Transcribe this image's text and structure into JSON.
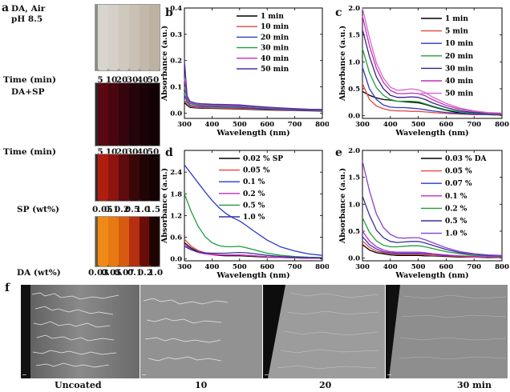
{
  "panels": {
    "a": {
      "label": "a",
      "caption1": "DA, Air",
      "caption2": "pH 8.5",
      "rows": [
        {
          "header": "Time (min)",
          "values": [
            "5",
            "10",
            "20",
            "30",
            "40",
            "50"
          ],
          "colors": [
            "#d9d5ce",
            "#d4cfc7",
            "#cfc8bd",
            "#c9c1b4",
            "#c3b9aa",
            "#bdb2a1"
          ]
        },
        {
          "header": "DA+SP",
          "header_pos": "above",
          "colors": [
            "#5a0812",
            "#4a0610",
            "#36040c",
            "#25030a",
            "#1a0207",
            "#120105"
          ]
        },
        {
          "header": "Time (min)",
          "values": [
            "5",
            "10",
            "20",
            "30",
            "40",
            "50"
          ]
        },
        {
          "header": "",
          "colors": [
            "#b01e10",
            "#8e1410",
            "#5e0c0e",
            "#3a0709",
            "#200406",
            "#130304"
          ]
        },
        {
          "header": "SP (wt%)",
          "values": [
            "0.05",
            "0.1",
            "0.2",
            "0.5",
            "1.0",
            "1.5"
          ]
        },
        {
          "header": "",
          "colors": [
            "#f08a16",
            "#e87812",
            "#d65a10",
            "#b53010",
            "#6a0c08",
            "#1e0504"
          ]
        },
        {
          "header": "DA (wt%)",
          "values": [
            "0.03",
            "0.05",
            "0.07",
            "0.1",
            "0.2",
            "1.0"
          ]
        }
      ]
    },
    "f": {
      "label": "f",
      "labels": [
        "Uncoated",
        "10",
        "20",
        "30 min"
      ]
    }
  },
  "chart_data": [
    {
      "panel": "b",
      "type": "line",
      "xlabel": "Wavelength (nm)",
      "ylabel": "Absorbance (a.u.)",
      "xlim": [
        300,
        800
      ],
      "ylim": [
        -0.02,
        0.4
      ],
      "xticks": [
        300,
        400,
        500,
        600,
        700,
        800
      ],
      "yticks": [
        0.0,
        0.1,
        0.2,
        0.3,
        0.4
      ],
      "ytick_labels": [
        "0.0",
        "0.1",
        "0.2",
        "0.3",
        "0.4"
      ],
      "legend_position": "top-right",
      "x": [
        300,
        310,
        320,
        340,
        360,
        400,
        450,
        500,
        550,
        600,
        650,
        700,
        750,
        800
      ],
      "series": [
        {
          "name": "1 min",
          "color": "#000000",
          "values": [
            0.04,
            0.03,
            0.022,
            0.02,
            0.019,
            0.018,
            0.017,
            0.016,
            0.014,
            0.012,
            0.011,
            0.01,
            0.009,
            0.008
          ]
        },
        {
          "name": "10 min",
          "color": "#e8453c",
          "values": [
            0.05,
            0.034,
            0.025,
            0.022,
            0.021,
            0.02,
            0.019,
            0.018,
            0.016,
            0.014,
            0.012,
            0.011,
            0.01,
            0.009
          ]
        },
        {
          "name": "20 min",
          "color": "#2a3ac8",
          "values": [
            0.07,
            0.042,
            0.03,
            0.026,
            0.025,
            0.024,
            0.023,
            0.022,
            0.019,
            0.016,
            0.014,
            0.012,
            0.011,
            0.01
          ]
        },
        {
          "name": "30 min",
          "color": "#1e9e3a",
          "values": [
            0.1,
            0.05,
            0.036,
            0.031,
            0.029,
            0.028,
            0.027,
            0.026,
            0.023,
            0.019,
            0.017,
            0.015,
            0.013,
            0.012
          ]
        },
        {
          "name": "40 min",
          "color": "#c02cc0",
          "values": [
            0.13,
            0.056,
            0.04,
            0.034,
            0.032,
            0.031,
            0.03,
            0.028,
            0.025,
            0.021,
            0.018,
            0.016,
            0.014,
            0.013
          ]
        },
        {
          "name": "50 min",
          "color": "#4b2fa0",
          "values": [
            0.2,
            0.065,
            0.045,
            0.038,
            0.036,
            0.034,
            0.033,
            0.031,
            0.027,
            0.023,
            0.02,
            0.017,
            0.015,
            0.014
          ]
        }
      ]
    },
    {
      "panel": "c",
      "type": "line",
      "xlabel": "Wavelength (nm)",
      "ylabel": "Absorbance (a.u.)",
      "xlim": [
        300,
        800
      ],
      "ylim": [
        -0.05,
        2.0
      ],
      "xticks": [
        300,
        400,
        500,
        600,
        700,
        800
      ],
      "yticks": [
        0.0,
        0.5,
        1.0,
        1.5,
        2.0
      ],
      "ytick_labels": [
        "0.0",
        "0.5",
        "1.0",
        "1.5",
        "2.0"
      ],
      "legend_position": "top-right",
      "x": [
        300,
        325,
        350,
        375,
        400,
        425,
        450,
        475,
        500,
        525,
        550,
        600,
        650,
        700,
        750,
        800
      ],
      "series": [
        {
          "name": "1 min",
          "color": "#000000",
          "values": [
            0.45,
            0.38,
            0.33,
            0.3,
            0.29,
            0.27,
            0.26,
            0.25,
            0.24,
            0.21,
            0.17,
            0.1,
            0.05,
            0.03,
            0.02,
            0.01
          ]
        },
        {
          "name": "5 min",
          "color": "#e8453c",
          "values": [
            0.6,
            0.3,
            0.18,
            0.13,
            0.1,
            0.09,
            0.09,
            0.08,
            0.08,
            0.07,
            0.06,
            0.04,
            0.03,
            0.02,
            0.02,
            0.01
          ]
        },
        {
          "name": "10 min",
          "color": "#2a3ac8",
          "values": [
            0.9,
            0.5,
            0.3,
            0.2,
            0.16,
            0.15,
            0.15,
            0.14,
            0.13,
            0.11,
            0.09,
            0.06,
            0.04,
            0.03,
            0.02,
            0.02
          ]
        },
        {
          "name": "20 min",
          "color": "#1e9e3a",
          "values": [
            1.25,
            0.8,
            0.52,
            0.38,
            0.3,
            0.27,
            0.27,
            0.27,
            0.26,
            0.22,
            0.18,
            0.11,
            0.07,
            0.05,
            0.03,
            0.02
          ]
        },
        {
          "name": "30 min",
          "color": "#3a1f8a",
          "values": [
            1.6,
            1.1,
            0.72,
            0.5,
            0.38,
            0.34,
            0.34,
            0.35,
            0.34,
            0.3,
            0.24,
            0.15,
            0.09,
            0.06,
            0.04,
            0.03
          ]
        },
        {
          "name": "40 min",
          "color": "#c02cc0",
          "values": [
            1.85,
            1.3,
            0.88,
            0.62,
            0.47,
            0.41,
            0.41,
            0.42,
            0.41,
            0.37,
            0.3,
            0.19,
            0.12,
            0.08,
            0.05,
            0.04
          ]
        },
        {
          "name": "50 min",
          "color": "#d868c8",
          "values": [
            2.0,
            1.45,
            0.98,
            0.7,
            0.53,
            0.47,
            0.48,
            0.5,
            0.48,
            0.43,
            0.35,
            0.23,
            0.14,
            0.09,
            0.06,
            0.05
          ]
        }
      ]
    },
    {
      "panel": "d",
      "type": "line",
      "xlabel": "Wavelength (nm)",
      "ylabel": "Absorbance (a.u.)",
      "xlim": [
        300,
        800
      ],
      "ylim": [
        -0.05,
        3.0
      ],
      "xticks": [
        300,
        400,
        500,
        600,
        700,
        800
      ],
      "yticks": [
        0.0,
        0.6,
        1.2,
        1.8,
        2.4
      ],
      "ytick_labels": [
        "0.0",
        "0.6",
        "1.2",
        "1.8",
        "2.4"
      ],
      "legend_position": "top-right",
      "x": [
        300,
        325,
        350,
        375,
        400,
        425,
        450,
        475,
        500,
        525,
        550,
        600,
        650,
        700,
        750,
        800
      ],
      "series": [
        {
          "name": "0.02 % SP",
          "color": "#000000",
          "values": [
            0.45,
            0.3,
            0.2,
            0.15,
            0.12,
            0.1,
            0.09,
            0.09,
            0.09,
            0.08,
            0.07,
            0.05,
            0.04,
            0.03,
            0.02,
            0.02
          ]
        },
        {
          "name": "0.05 %",
          "color": "#e8453c",
          "values": [
            0.55,
            0.35,
            0.23,
            0.17,
            0.14,
            0.12,
            0.11,
            0.11,
            0.11,
            0.1,
            0.09,
            0.06,
            0.05,
            0.04,
            0.03,
            0.02
          ]
        },
        {
          "name": "0.1 %",
          "color": "#2a3ac8",
          "values": [
            2.6,
            2.35,
            2.1,
            1.85,
            1.62,
            1.42,
            1.26,
            1.14,
            1.05,
            0.92,
            0.78,
            0.52,
            0.33,
            0.22,
            0.14,
            0.1
          ]
        },
        {
          "name": "0.2 %",
          "color": "#c02cc0",
          "values": [
            0.4,
            0.26,
            0.18,
            0.14,
            0.12,
            0.11,
            0.11,
            0.11,
            0.11,
            0.1,
            0.09,
            0.06,
            0.04,
            0.03,
            0.02,
            0.02
          ]
        },
        {
          "name": "0.5 %",
          "color": "#1e9e3a",
          "values": [
            1.8,
            1.3,
            0.9,
            0.62,
            0.45,
            0.37,
            0.34,
            0.34,
            0.35,
            0.31,
            0.26,
            0.16,
            0.1,
            0.07,
            0.05,
            0.04
          ]
        },
        {
          "name": "1.0 %",
          "color": "#3a2fa0",
          "values": [
            0.35,
            0.25,
            0.2,
            0.17,
            0.16,
            0.16,
            0.16,
            0.17,
            0.18,
            0.17,
            0.15,
            0.1,
            0.07,
            0.05,
            0.04,
            0.03
          ]
        }
      ]
    },
    {
      "panel": "e",
      "type": "line",
      "xlabel": "Wavelength (nm)",
      "ylabel": "Absorbance (a.u.)",
      "xlim": [
        300,
        800
      ],
      "ylim": [
        -0.05,
        2.0
      ],
      "xticks": [
        300,
        400,
        500,
        600,
        700,
        800
      ],
      "yticks": [
        0.0,
        0.5,
        1.0,
        1.5,
        2.0
      ],
      "ytick_labels": [
        "0.0",
        "0.5",
        "1.0",
        "1.5",
        "2.0"
      ],
      "legend_position": "top-right",
      "x": [
        300,
        325,
        350,
        375,
        400,
        425,
        450,
        475,
        500,
        525,
        550,
        600,
        650,
        700,
        750,
        800
      ],
      "series": [
        {
          "name": "0.03 % DA",
          "color": "#000000",
          "values": [
            0.25,
            0.15,
            0.1,
            0.08,
            0.06,
            0.05,
            0.05,
            0.05,
            0.05,
            0.04,
            0.04,
            0.03,
            0.02,
            0.02,
            0.01,
            0.01
          ]
        },
        {
          "name": "0.05 %",
          "color": "#e8453c",
          "values": [
            0.32,
            0.2,
            0.13,
            0.1,
            0.08,
            0.07,
            0.07,
            0.07,
            0.07,
            0.06,
            0.05,
            0.04,
            0.03,
            0.02,
            0.02,
            0.01
          ]
        },
        {
          "name": "0.07 %",
          "color": "#2a3ac8",
          "values": [
            0.4,
            0.25,
            0.17,
            0.12,
            0.1,
            0.09,
            0.09,
            0.09,
            0.09,
            0.08,
            0.07,
            0.05,
            0.04,
            0.03,
            0.02,
            0.02
          ]
        },
        {
          "name": "0.1 %",
          "color": "#c02cc0",
          "values": [
            0.5,
            0.32,
            0.21,
            0.15,
            0.12,
            0.11,
            0.11,
            0.11,
            0.11,
            0.1,
            0.08,
            0.06,
            0.04,
            0.03,
            0.02,
            0.02
          ]
        },
        {
          "name": "0.2 %",
          "color": "#1e9e3a",
          "values": [
            0.75,
            0.48,
            0.32,
            0.24,
            0.21,
            0.21,
            0.22,
            0.23,
            0.23,
            0.21,
            0.18,
            0.12,
            0.08,
            0.05,
            0.04,
            0.03
          ]
        },
        {
          "name": "0.5 %",
          "color": "#3a2fa0",
          "values": [
            1.15,
            0.8,
            0.52,
            0.38,
            0.31,
            0.29,
            0.3,
            0.31,
            0.31,
            0.28,
            0.24,
            0.16,
            0.1,
            0.07,
            0.05,
            0.04
          ]
        },
        {
          "name": "1.0 %",
          "color": "#8c3cd0",
          "values": [
            1.8,
            1.25,
            0.82,
            0.57,
            0.44,
            0.38,
            0.37,
            0.38,
            0.38,
            0.34,
            0.29,
            0.19,
            0.12,
            0.08,
            0.06,
            0.05
          ]
        }
      ]
    }
  ]
}
